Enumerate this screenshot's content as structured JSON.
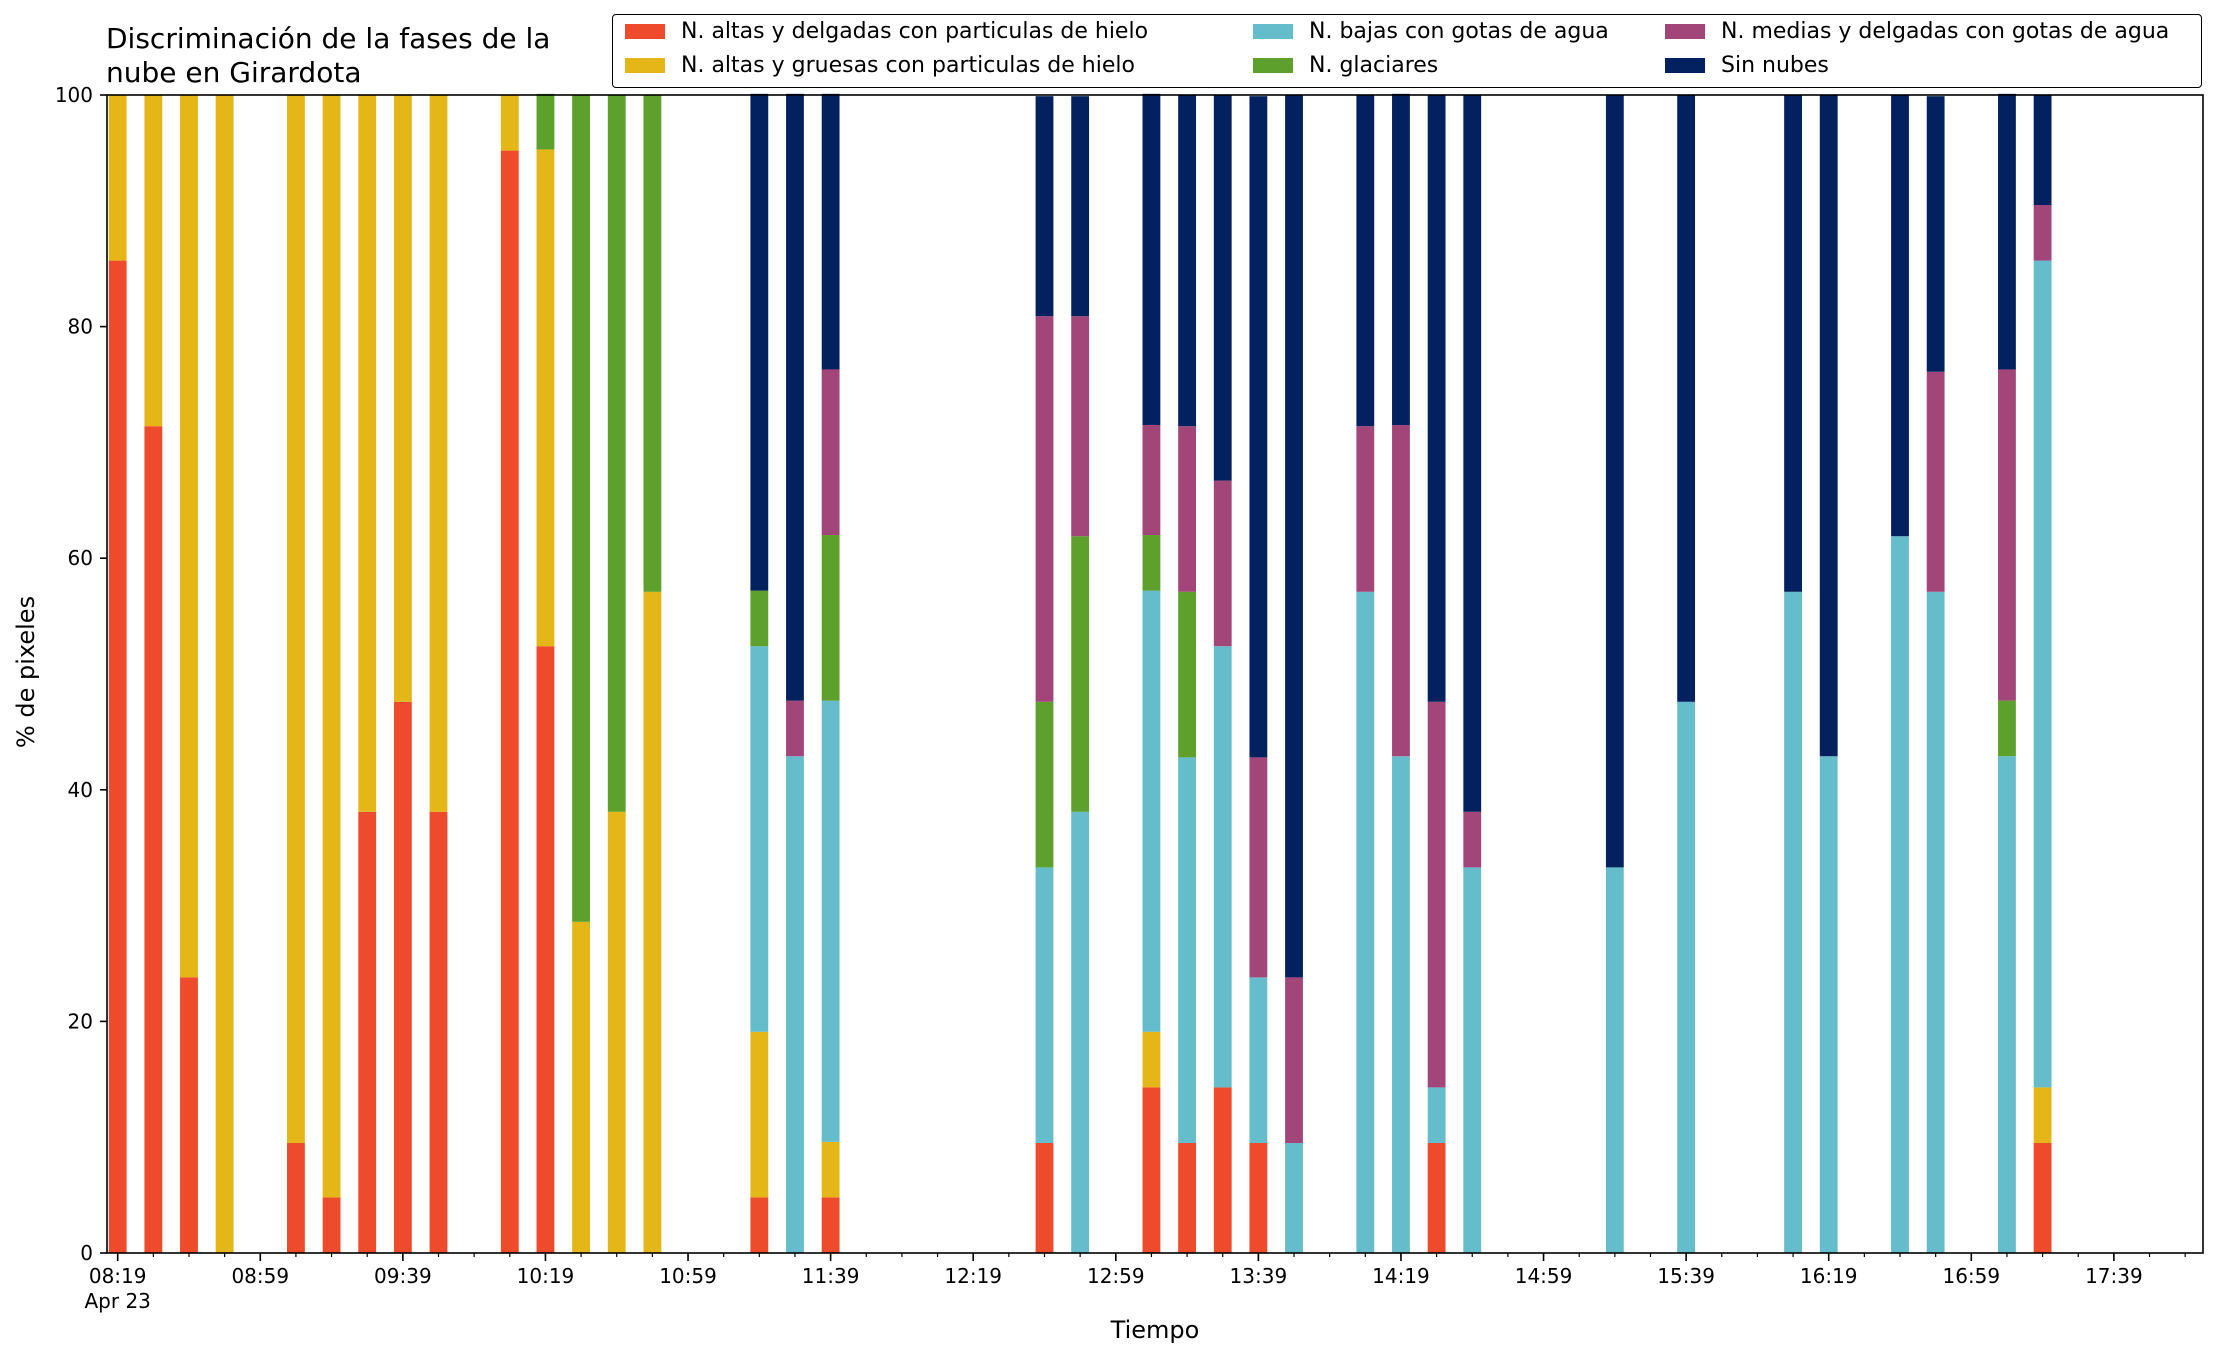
{
  "chart_data": {
    "type": "bar",
    "stacked": true,
    "title": "Discriminación de la fases de la nube en Girardota",
    "xlabel": "Tiempo",
    "ylabel": "% de pixeles",
    "ylim": [
      0,
      100
    ],
    "yticks": [
      "0",
      "20",
      "40",
      "60",
      "80",
      "100"
    ],
    "xlim": [
      "08:16",
      "18:04"
    ],
    "bar_interval_minutes": 10,
    "xticks": [
      {
        "time": "08:19",
        "label": "08:19",
        "sublabel": "Apr 23"
      },
      {
        "time": "08:59",
        "label": "08:59"
      },
      {
        "time": "09:39",
        "label": "09:39"
      },
      {
        "time": "10:19",
        "label": "10:19"
      },
      {
        "time": "10:59",
        "label": "10:59"
      },
      {
        "time": "11:39",
        "label": "11:39"
      },
      {
        "time": "12:19",
        "label": "12:19"
      },
      {
        "time": "12:59",
        "label": "12:59"
      },
      {
        "time": "13:39",
        "label": "13:39"
      },
      {
        "time": "14:19",
        "label": "14:19"
      },
      {
        "time": "14:59",
        "label": "14:59"
      },
      {
        "time": "15:39",
        "label": "15:39"
      },
      {
        "time": "16:19",
        "label": "16:19"
      },
      {
        "time": "16:59",
        "label": "16:59"
      },
      {
        "time": "17:39",
        "label": "17:39"
      }
    ],
    "grid": false,
    "legend_position": "top",
    "series": [
      {
        "name": "N. altas y delgadas con particulas de hielo",
        "color": "#ee4a2c"
      },
      {
        "name": "N. altas y gruesas con particulas de hielo",
        "color": "#e5b618"
      },
      {
        "name": "N. bajas con gotas de agua",
        "color": "#65bccb"
      },
      {
        "name": "N. glaciares",
        "color": "#5da02c"
      },
      {
        "name": "N. medias y delgadas con gotas de agua",
        "color": "#a24579"
      },
      {
        "name": "Sin nubes",
        "color": "#03205f"
      }
    ],
    "legend_order": [
      0,
      2,
      4,
      1,
      3,
      5
    ],
    "bars": [
      {
        "time": "08:19",
        "values": [
          85.7,
          14.3,
          0,
          0,
          0,
          0
        ]
      },
      {
        "time": "08:29",
        "values": [
          71.4,
          28.6,
          0,
          0,
          0,
          0
        ]
      },
      {
        "time": "08:39",
        "values": [
          23.8,
          76.2,
          0,
          0,
          0,
          0
        ]
      },
      {
        "time": "08:49",
        "values": [
          0,
          100,
          0,
          0,
          0,
          0
        ]
      },
      {
        "time": "09:09",
        "values": [
          9.5,
          90.5,
          0,
          0,
          0,
          0
        ]
      },
      {
        "time": "09:19",
        "values": [
          4.8,
          95.2,
          0,
          0,
          0,
          0
        ]
      },
      {
        "time": "09:29",
        "values": [
          38.1,
          61.9,
          0,
          0,
          0,
          0
        ]
      },
      {
        "time": "09:39",
        "values": [
          47.6,
          52.4,
          0,
          0,
          0,
          0
        ]
      },
      {
        "time": "09:49",
        "values": [
          38.1,
          61.9,
          0,
          0,
          0,
          0
        ]
      },
      {
        "time": "10:09",
        "values": [
          95.2,
          4.8,
          0,
          0,
          0,
          0
        ]
      },
      {
        "time": "10:19",
        "values": [
          52.4,
          42.9,
          0,
          4.8,
          0,
          0
        ]
      },
      {
        "time": "10:29",
        "values": [
          0,
          28.6,
          0,
          71.4,
          0,
          0
        ]
      },
      {
        "time": "10:39",
        "values": [
          0,
          38.1,
          0,
          61.9,
          0,
          0
        ]
      },
      {
        "time": "10:49",
        "values": [
          0,
          57.1,
          0,
          42.9,
          0,
          0
        ]
      },
      {
        "time": "11:19",
        "values": [
          4.8,
          14.3,
          33.3,
          4.8,
          0,
          42.9
        ]
      },
      {
        "time": "11:29",
        "values": [
          0,
          0,
          42.9,
          0,
          4.8,
          52.4
        ]
      },
      {
        "time": "11:39",
        "values": [
          4.8,
          4.8,
          38.1,
          14.3,
          14.3,
          23.8
        ]
      },
      {
        "time": "12:39",
        "values": [
          9.5,
          0,
          23.8,
          14.3,
          33.3,
          19.0
        ]
      },
      {
        "time": "12:49",
        "values": [
          0,
          0,
          38.1,
          23.8,
          19.0,
          19.0
        ]
      },
      {
        "time": "13:09",
        "values": [
          14.3,
          4.8,
          38.1,
          4.8,
          9.5,
          28.6
        ]
      },
      {
        "time": "13:19",
        "values": [
          9.5,
          0,
          33.3,
          14.3,
          14.3,
          28.6
        ]
      },
      {
        "time": "13:29",
        "values": [
          14.3,
          0,
          38.1,
          0,
          14.3,
          33.3
        ]
      },
      {
        "time": "13:39",
        "values": [
          9.5,
          0,
          14.3,
          0,
          19.0,
          57.1
        ]
      },
      {
        "time": "13:49",
        "values": [
          0,
          0,
          9.5,
          0,
          14.3,
          76.2
        ]
      },
      {
        "time": "14:09",
        "values": [
          0,
          0,
          57.1,
          0,
          14.3,
          28.6
        ]
      },
      {
        "time": "14:19",
        "values": [
          0,
          0,
          42.9,
          0,
          28.6,
          28.6
        ]
      },
      {
        "time": "14:29",
        "values": [
          9.5,
          0,
          4.8,
          0,
          33.3,
          52.4
        ]
      },
      {
        "time": "14:39",
        "values": [
          0,
          0,
          33.3,
          0,
          4.8,
          61.9
        ]
      },
      {
        "time": "15:19",
        "values": [
          0,
          0,
          33.3,
          0,
          0,
          66.7
        ]
      },
      {
        "time": "15:39",
        "values": [
          0,
          0,
          47.6,
          0,
          0,
          52.4
        ]
      },
      {
        "time": "16:09",
        "values": [
          0,
          0,
          57.1,
          0,
          0,
          42.9
        ]
      },
      {
        "time": "16:19",
        "values": [
          0,
          0,
          42.9,
          0,
          0,
          57.1
        ]
      },
      {
        "time": "16:39",
        "values": [
          0,
          0,
          61.9,
          0,
          0,
          38.1
        ]
      },
      {
        "time": "16:49",
        "values": [
          0,
          0,
          57.1,
          0,
          19.0,
          23.8
        ]
      },
      {
        "time": "17:09",
        "values": [
          0,
          0,
          42.9,
          4.8,
          28.6,
          23.8
        ]
      },
      {
        "time": "17:19",
        "values": [
          9.5,
          4.8,
          71.4,
          0,
          4.8,
          9.5
        ]
      }
    ]
  }
}
